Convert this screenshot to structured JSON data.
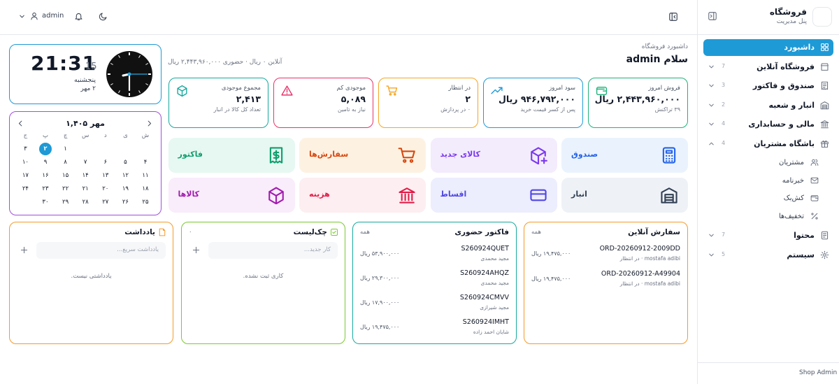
{
  "sidebar": {
    "brand": "فروشگاه",
    "brand_subtitle": "پنل مدیریت",
    "menu": [
      {
        "label": "داشبورد"
      },
      {
        "label": "فروشگاه آنلاین",
        "count": "7"
      },
      {
        "label": "صندوق و فاکتور",
        "count": "3"
      },
      {
        "label": "انبار و شعبه",
        "count": "2"
      },
      {
        "label": "مالی و حسابداری",
        "count": "4"
      },
      {
        "label": "باشگاه مشتریان",
        "count": "4"
      }
    ],
    "submenu": [
      "مشتریان",
      "خبرنامه",
      "کش‌بک",
      "تخفیف‌ها"
    ],
    "menu_bottom": [
      {
        "label": "محتوا",
        "count": "7"
      },
      {
        "label": "سیستم",
        "count": "5"
      }
    ],
    "footer": "Shop Admin"
  },
  "topbar": {
    "user": "admin"
  },
  "header": {
    "breadcrumb": "داشبورد فروشگاه",
    "greeting": "سلام admin",
    "summary": "آنلاین ۰ ریال · حضوری ۲,۴۴۳,۹۶۰,۰۰۰ ریال"
  },
  "clock": {
    "time": "21:31",
    "seconds": "15",
    "weekday": "پنجشنبه",
    "date": "۲ مهر"
  },
  "calendar": {
    "title": "مهر ۱,۴۰۵",
    "weekdays": [
      "ش",
      "ی",
      "د",
      "س",
      "چ",
      "پ",
      "ج"
    ],
    "days": [
      null,
      null,
      null,
      null,
      "۱",
      "۲",
      "۳",
      "۴",
      "۵",
      "۶",
      "۷",
      "۸",
      "۹",
      "۱۰",
      "۱۱",
      "۱۲",
      "۱۳",
      "۱۴",
      "۱۵",
      "۱۶",
      "۱۷",
      "۱۸",
      "۱۹",
      "۲۰",
      "۲۱",
      "۲۲",
      "۲۳",
      "۲۴",
      "۲۵",
      "۲۶",
      "۲۷",
      "۲۸",
      "۲۹",
      "۳۰",
      null
    ],
    "today_index": 5
  },
  "stats": [
    {
      "label": "فروش امروز",
      "value": "۲,۴۴۳,۹۶۰,۰۰۰ ریال",
      "note": "۳۹ تراکنش",
      "color": "#1fb27a"
    },
    {
      "label": "سود امروز",
      "value": "۹۴۶,۷۹۲,۰۰۰ ریال",
      "note": "پس از کسر قیمت خرید",
      "color": "#1e9ad6"
    },
    {
      "label": "در انتظار",
      "value": "۲",
      "note": "۰ در پردازش",
      "color": "#f5a623"
    },
    {
      "label": "موجودی کم",
      "value": "۵,۰۸۹",
      "note": "نیاز به تامین",
      "color": "#e8336b"
    },
    {
      "label": "مجموع موجودی",
      "value": "۲,۴۱۳",
      "note": "تعداد کل کالا در انبار",
      "color": "#17a89e"
    }
  ],
  "actions": [
    {
      "label": "صندوق",
      "color": "#2563eb",
      "bg": "#eaf3fd"
    },
    {
      "label": "کالای جدید",
      "color": "#7c3aed",
      "bg": "#f3ecfd"
    },
    {
      "label": "سفارش‌ها",
      "color": "#d9480f",
      "bg": "#fdf2e2"
    },
    {
      "label": "فاکتور",
      "color": "#0f9f6e",
      "bg": "#e6f8f1"
    },
    {
      "label": "انبار",
      "color": "#334155",
      "bg": "#eef2f7"
    },
    {
      "label": "اقساط",
      "color": "#4f46e5",
      "bg": "#ecedfd"
    },
    {
      "label": "هزینه",
      "color": "#e11d48",
      "bg": "#fdeef1"
    },
    {
      "label": "کالاها",
      "color": "#a21caf",
      "bg": "#f9ecfb"
    }
  ],
  "online_orders": {
    "title": "سفارش آنلاین",
    "all": "همه",
    "items": [
      {
        "id": "ORD-20260912-2009DD",
        "meta": "mostafa adibi · در انتظار",
        "amount": "۱۹,۴۷۵,۰۰۰ ریال"
      },
      {
        "id": "ORD-20260912-A49904",
        "meta": "mostafa adibi · در انتظار",
        "amount": "۱۹,۴۷۵,۰۰۰ ریال"
      }
    ]
  },
  "invoices": {
    "title": "فاکتور حضوری",
    "all": "همه",
    "items": [
      {
        "id": "S260924QUET",
        "meta": "مجید محمدی",
        "amount": "۵۳,۹۰۰,۰۰۰ ریال"
      },
      {
        "id": "S260924AHQZ",
        "meta": "مجید محمدی",
        "amount": "۲۹,۳۰۰,۰۰۰ ریال"
      },
      {
        "id": "S260924CMVV",
        "meta": "مجید شیرازی",
        "amount": "۱۷,۹۰۰,۰۰۰ ریال"
      },
      {
        "id": "S260924IMHT",
        "meta": "شایان احمد زاده",
        "amount": "۱۹,۴۷۵,۰۰۰ ریال"
      }
    ]
  },
  "checklist": {
    "title": "چک‌لیست",
    "count": "۰",
    "placeholder": "کار جدید...",
    "empty": "کاری ثبت نشده."
  },
  "notes": {
    "title": "یادداشت",
    "placeholder": "یادداشت سریع...",
    "empty": "یادداشتی نیست."
  }
}
